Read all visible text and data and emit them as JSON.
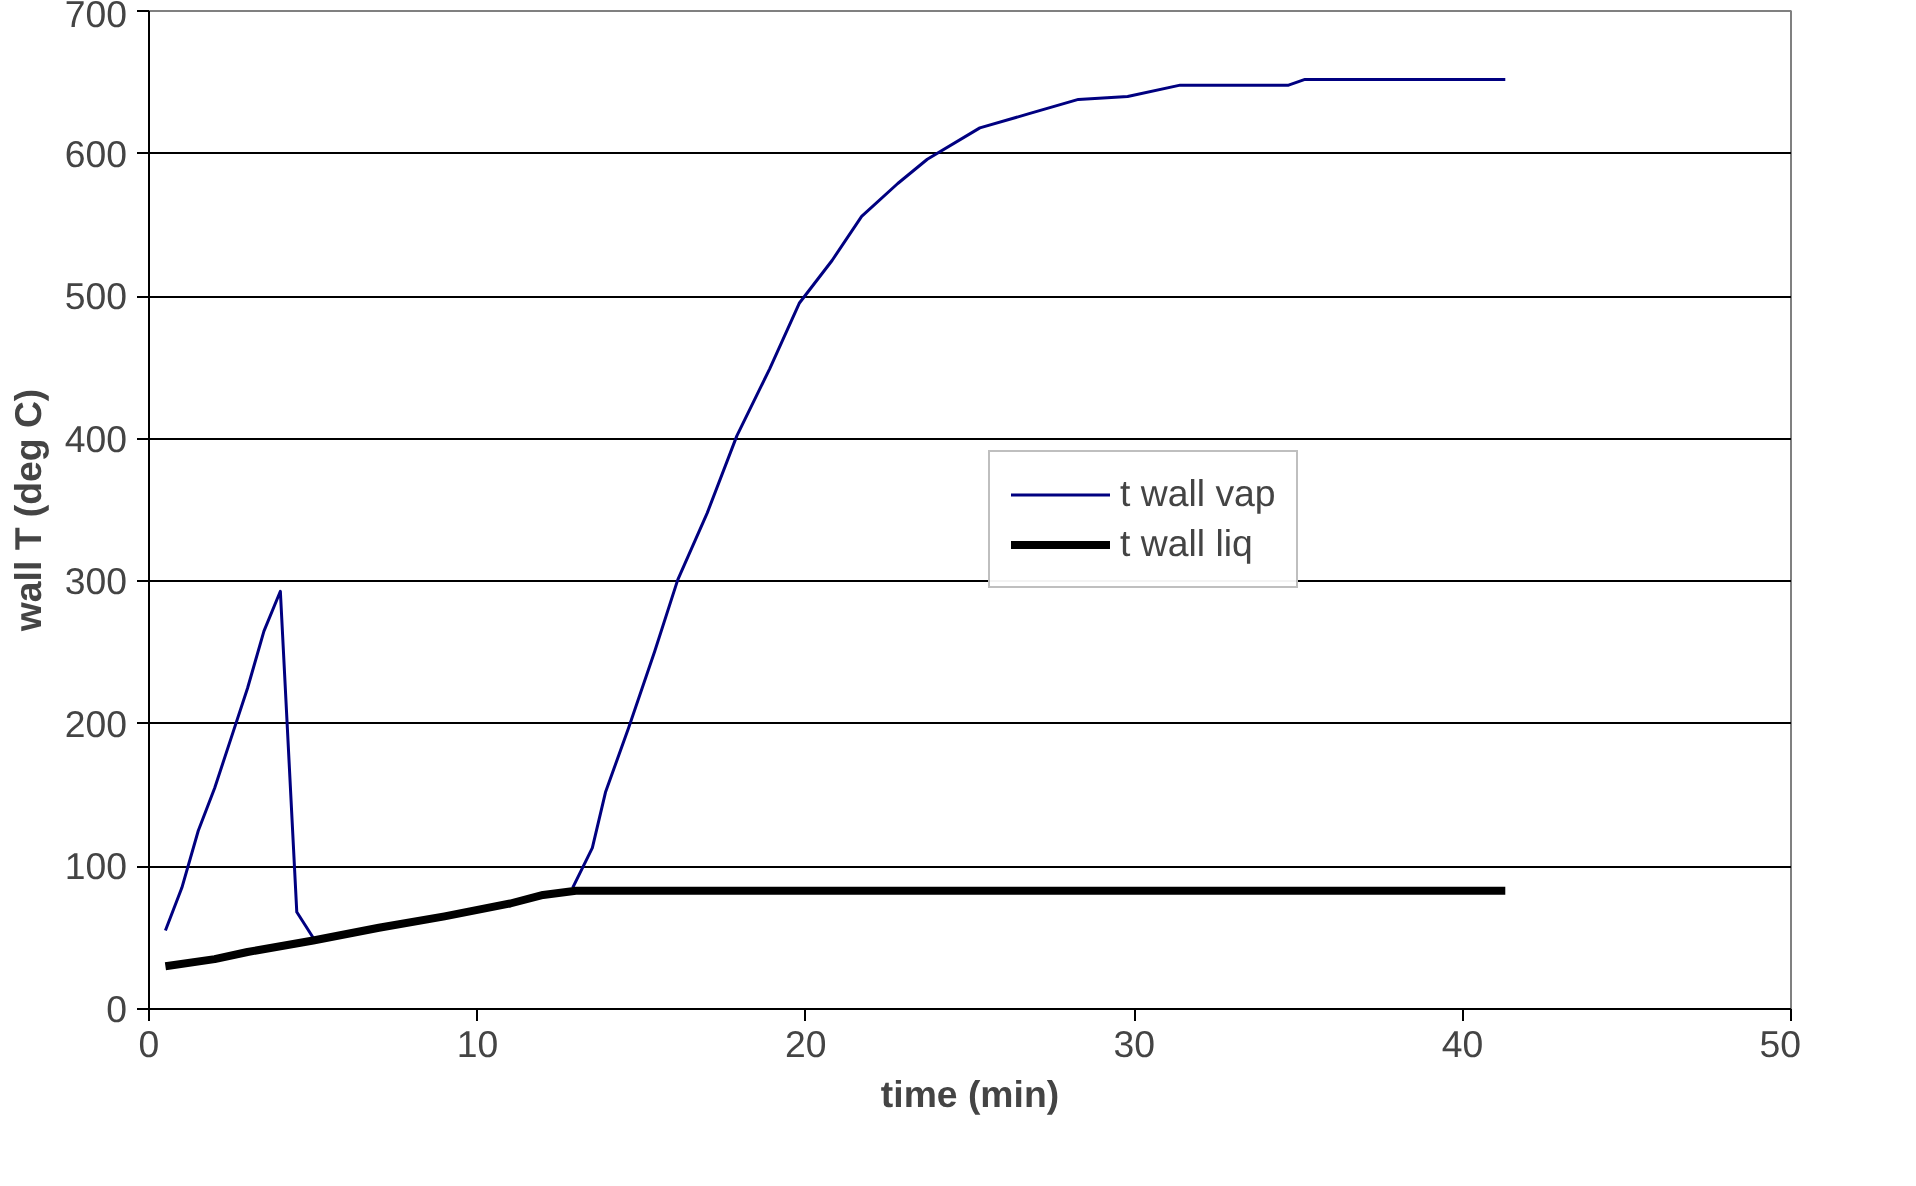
{
  "chart_data": {
    "type": "line",
    "xlabel": "time (min)",
    "ylabel": "wall T (deg C)",
    "xlim": [
      0,
      50
    ],
    "xticks": [
      0,
      10,
      20,
      30,
      40,
      50
    ],
    "ylim": [
      0,
      700
    ],
    "yticks": [
      0,
      100,
      200,
      300,
      400,
      500,
      600,
      700
    ],
    "grid": "y",
    "legend": "right",
    "marker": "none",
    "line_style": "solid",
    "series": [
      {
        "name": "t wall vap",
        "color": "#000080",
        "x": [
          0.5,
          1,
          1.5,
          2,
          2.5,
          3,
          3.5,
          4,
          4.5,
          5,
          5.5,
          6,
          7,
          8,
          9,
          10,
          11,
          12,
          12.9,
          13.5,
          13.9,
          14.6,
          15.4,
          16.1,
          17.0,
          17.9,
          18.9,
          19.8,
          20.8,
          21.7,
          22.8,
          23.7,
          25.3,
          26.8,
          28.3,
          29.8,
          31.4,
          34.7,
          35.2,
          41.3
        ],
        "values": [
          55,
          85,
          125,
          155,
          190,
          225,
          265,
          293,
          68,
          50,
          null,
          null,
          null,
          null,
          null,
          null,
          null,
          null,
          85,
          113,
          152,
          197,
          251,
          301,
          348,
          402,
          449,
          495,
          525,
          556,
          579,
          596,
          618,
          628,
          638,
          640,
          648,
          648,
          652,
          652
        ]
      },
      {
        "name": "t wall liq",
        "color": "#000000",
        "x": [
          0.5,
          2,
          3,
          5,
          7,
          9,
          11,
          12,
          13,
          20,
          30,
          41.3
        ],
        "values": [
          30,
          35,
          40,
          48,
          57,
          65,
          74,
          80,
          83,
          83,
          83,
          83
        ]
      }
    ]
  }
}
